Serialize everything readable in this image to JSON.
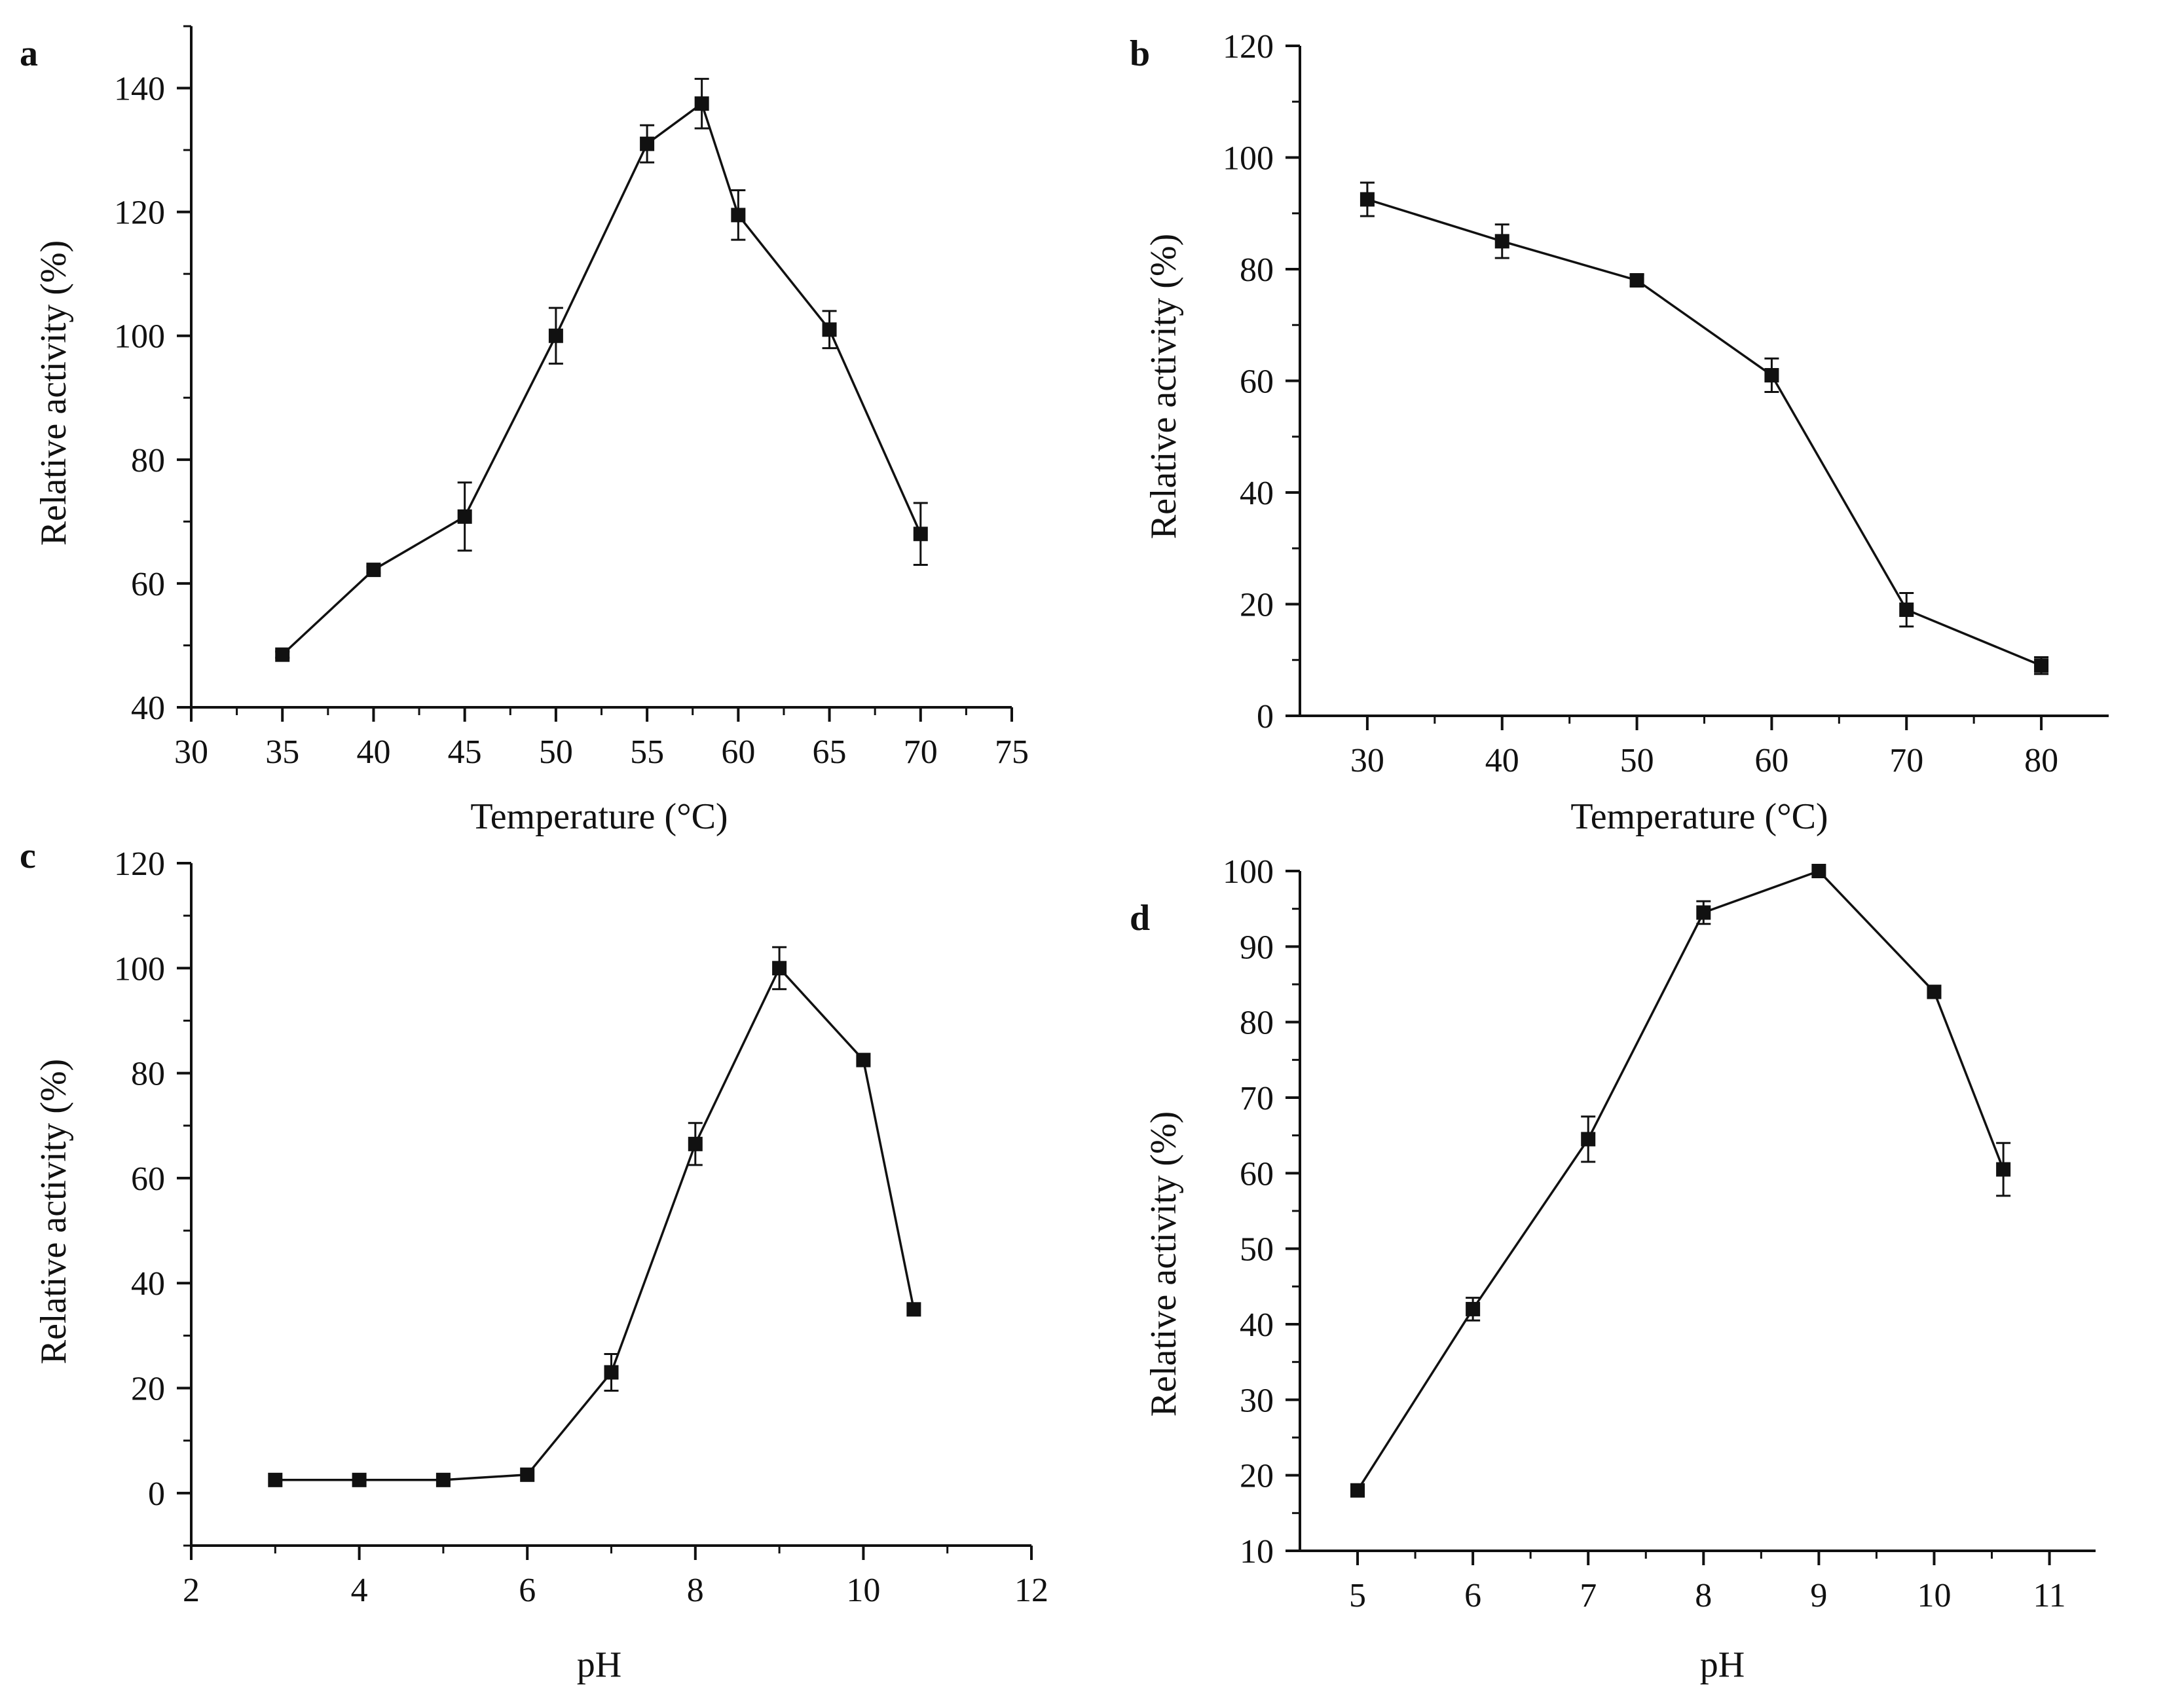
{
  "chart_data": [
    {
      "panel": "a",
      "type": "line",
      "xlabel": "Temperature (°C)",
      "ylabel": "Relative activity (%)",
      "xlim": [
        30,
        75
      ],
      "ylim": [
        40,
        150
      ],
      "xticks": [
        30,
        35,
        40,
        45,
        50,
        55,
        60,
        65,
        70,
        75
      ],
      "yticks": [
        40,
        60,
        80,
        100,
        120,
        140
      ],
      "grid": false,
      "series": [
        {
          "x": [
            35,
            40,
            45,
            50,
            55,
            58,
            60,
            65,
            70
          ],
          "y": [
            48.5,
            62.2,
            70.8,
            100,
            131,
            137.5,
            119.5,
            101,
            68
          ],
          "error": [
            0.5,
            0.5,
            5.5,
            4.5,
            3,
            4,
            4,
            3,
            5
          ]
        }
      ]
    },
    {
      "panel": "b",
      "type": "line",
      "xlabel": "Temperature (°C)",
      "ylabel": "Relative activity (%)",
      "xlim": [
        25,
        85
      ],
      "ylim": [
        0,
        120
      ],
      "xticks": [
        30,
        40,
        50,
        60,
        70,
        80
      ],
      "yticks": [
        0,
        20,
        40,
        60,
        80,
        100,
        120
      ],
      "grid": false,
      "series": [
        {
          "x": [
            30,
            40,
            50,
            60,
            70,
            80
          ],
          "y": [
            92.5,
            85,
            78,
            61,
            19,
            9
          ],
          "error": [
            3,
            3,
            1,
            3,
            3,
            1.5
          ]
        }
      ]
    },
    {
      "panel": "c",
      "type": "line",
      "xlabel": "pH",
      "ylabel": "Relative activity (%)",
      "xlim": [
        2,
        12
      ],
      "ylim": [
        -10,
        120
      ],
      "xticks": [
        2,
        4,
        6,
        8,
        10,
        12
      ],
      "yticks": [
        0,
        20,
        40,
        60,
        80,
        100,
        120
      ],
      "grid": false,
      "series": [
        {
          "x": [
            3,
            4,
            5,
            6,
            7,
            8,
            9,
            10,
            10.6
          ],
          "y": [
            2.5,
            2.5,
            2.5,
            3.5,
            23,
            66.5,
            100,
            82.5,
            35
          ],
          "error": [
            0,
            0,
            0,
            0,
            3.5,
            4,
            4,
            0,
            0
          ]
        }
      ]
    },
    {
      "panel": "d",
      "type": "line",
      "xlabel": "pH",
      "ylabel": "Relative activity (%)",
      "xlim": [
        4.5,
        11.4
      ],
      "ylim": [
        10,
        100
      ],
      "xticks": [
        5,
        6,
        7,
        8,
        9,
        10,
        11
      ],
      "yticks": [
        10,
        20,
        30,
        40,
        50,
        60,
        70,
        80,
        90,
        100
      ],
      "grid": false,
      "series": [
        {
          "x": [
            5,
            6,
            7,
            8,
            9,
            10,
            10.6
          ],
          "y": [
            18,
            42,
            64.5,
            94.5,
            100,
            84,
            60.5
          ],
          "error": [
            0,
            1.5,
            3,
            1.5,
            0,
            0,
            3.5
          ]
        }
      ]
    }
  ]
}
